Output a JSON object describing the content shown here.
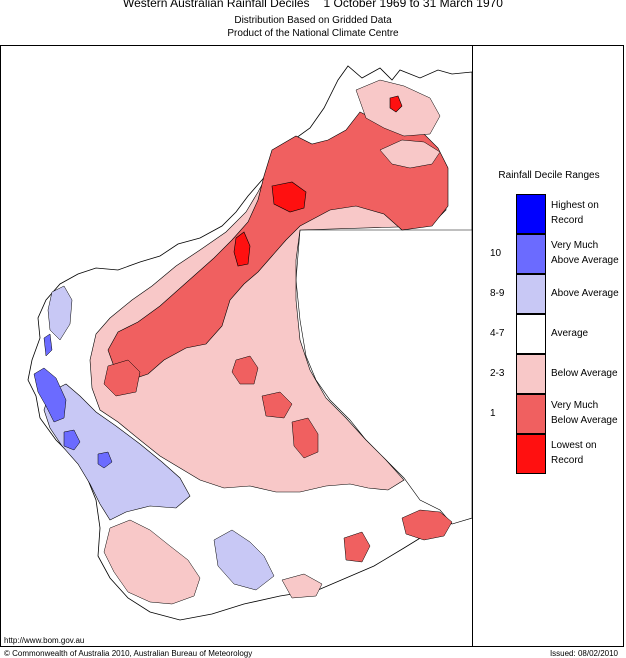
{
  "header": {
    "title_region": "Western Australian Rainfall Deciles",
    "title_period": "1 October 1969 to 31 March 1970",
    "subtitle_line1": "Distribution Based on Gridded Data",
    "subtitle_line2": "Product of the National Climate Centre"
  },
  "legend": {
    "title": "Rainfall Decile Ranges",
    "items": [
      {
        "range": "",
        "label_line1": "Highest on",
        "label_line2": "Record",
        "color": "#0000ff"
      },
      {
        "range": "10",
        "label_line1": "Very Much",
        "label_line2": "Above Average",
        "color": "#6b6bff"
      },
      {
        "range": "8-9",
        "label_line1": "Above Average",
        "label_line2": "",
        "color": "#c8c8f5"
      },
      {
        "range": "4-7",
        "label_line1": "Average",
        "label_line2": "",
        "color": "#ffffff"
      },
      {
        "range": "2-3",
        "label_line1": "Below Average",
        "label_line2": "",
        "color": "#f8c8c8"
      },
      {
        "range": "1",
        "label_line1": "Very Much",
        "label_line2": "Below Average",
        "color": "#f06060"
      },
      {
        "range": "",
        "label_line1": "Lowest on",
        "label_line2": "Record",
        "color": "#ff1010"
      }
    ]
  },
  "footer": {
    "url": "http://www.bom.gov.au",
    "copyright": "© Commonwealth of Australia 2010, Australian Bureau of Meteorology",
    "issued": "Issued: 08/02/2010"
  }
}
